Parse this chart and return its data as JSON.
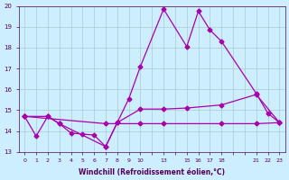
{
  "xlabel": "Windchill (Refroidissement éolien,°C)",
  "bg_color": "#cceeff",
  "line_color": "#aa00aa",
  "grid_color": "#aacccc",
  "ylim": [
    13.0,
    20.0
  ],
  "yticks": [
    13,
    14,
    15,
    16,
    17,
    18,
    19,
    20
  ],
  "xlabels": [
    "0",
    "1",
    "2",
    "3",
    "4",
    "5",
    "6",
    "7",
    "8",
    "9",
    "10",
    "",
    "13",
    "",
    "15",
    "16",
    "17",
    "18",
    "",
    "",
    "21",
    "22",
    "23"
  ],
  "n_xpoints": 23,
  "line1_xi": [
    0,
    1,
    2,
    3,
    4,
    5,
    6,
    7,
    8,
    9,
    10,
    12,
    14,
    15,
    16,
    17,
    20,
    21,
    22
  ],
  "line1_y": [
    14.7,
    13.75,
    14.7,
    14.35,
    13.9,
    13.85,
    13.8,
    13.25,
    14.4,
    15.55,
    17.1,
    19.85,
    18.05,
    19.75,
    18.85,
    18.3,
    15.8,
    14.85,
    14.4
  ],
  "line2_xi": [
    0,
    2,
    3,
    7,
    8,
    10,
    12,
    14,
    17,
    20,
    22
  ],
  "line2_y": [
    14.7,
    14.7,
    14.35,
    13.25,
    14.4,
    15.05,
    15.05,
    15.1,
    15.25,
    15.75,
    14.4
  ],
  "line3_xi": [
    0,
    7,
    10,
    12,
    17,
    20,
    22
  ],
  "line3_y": [
    14.7,
    14.35,
    14.35,
    14.35,
    14.35,
    14.35,
    14.4
  ]
}
